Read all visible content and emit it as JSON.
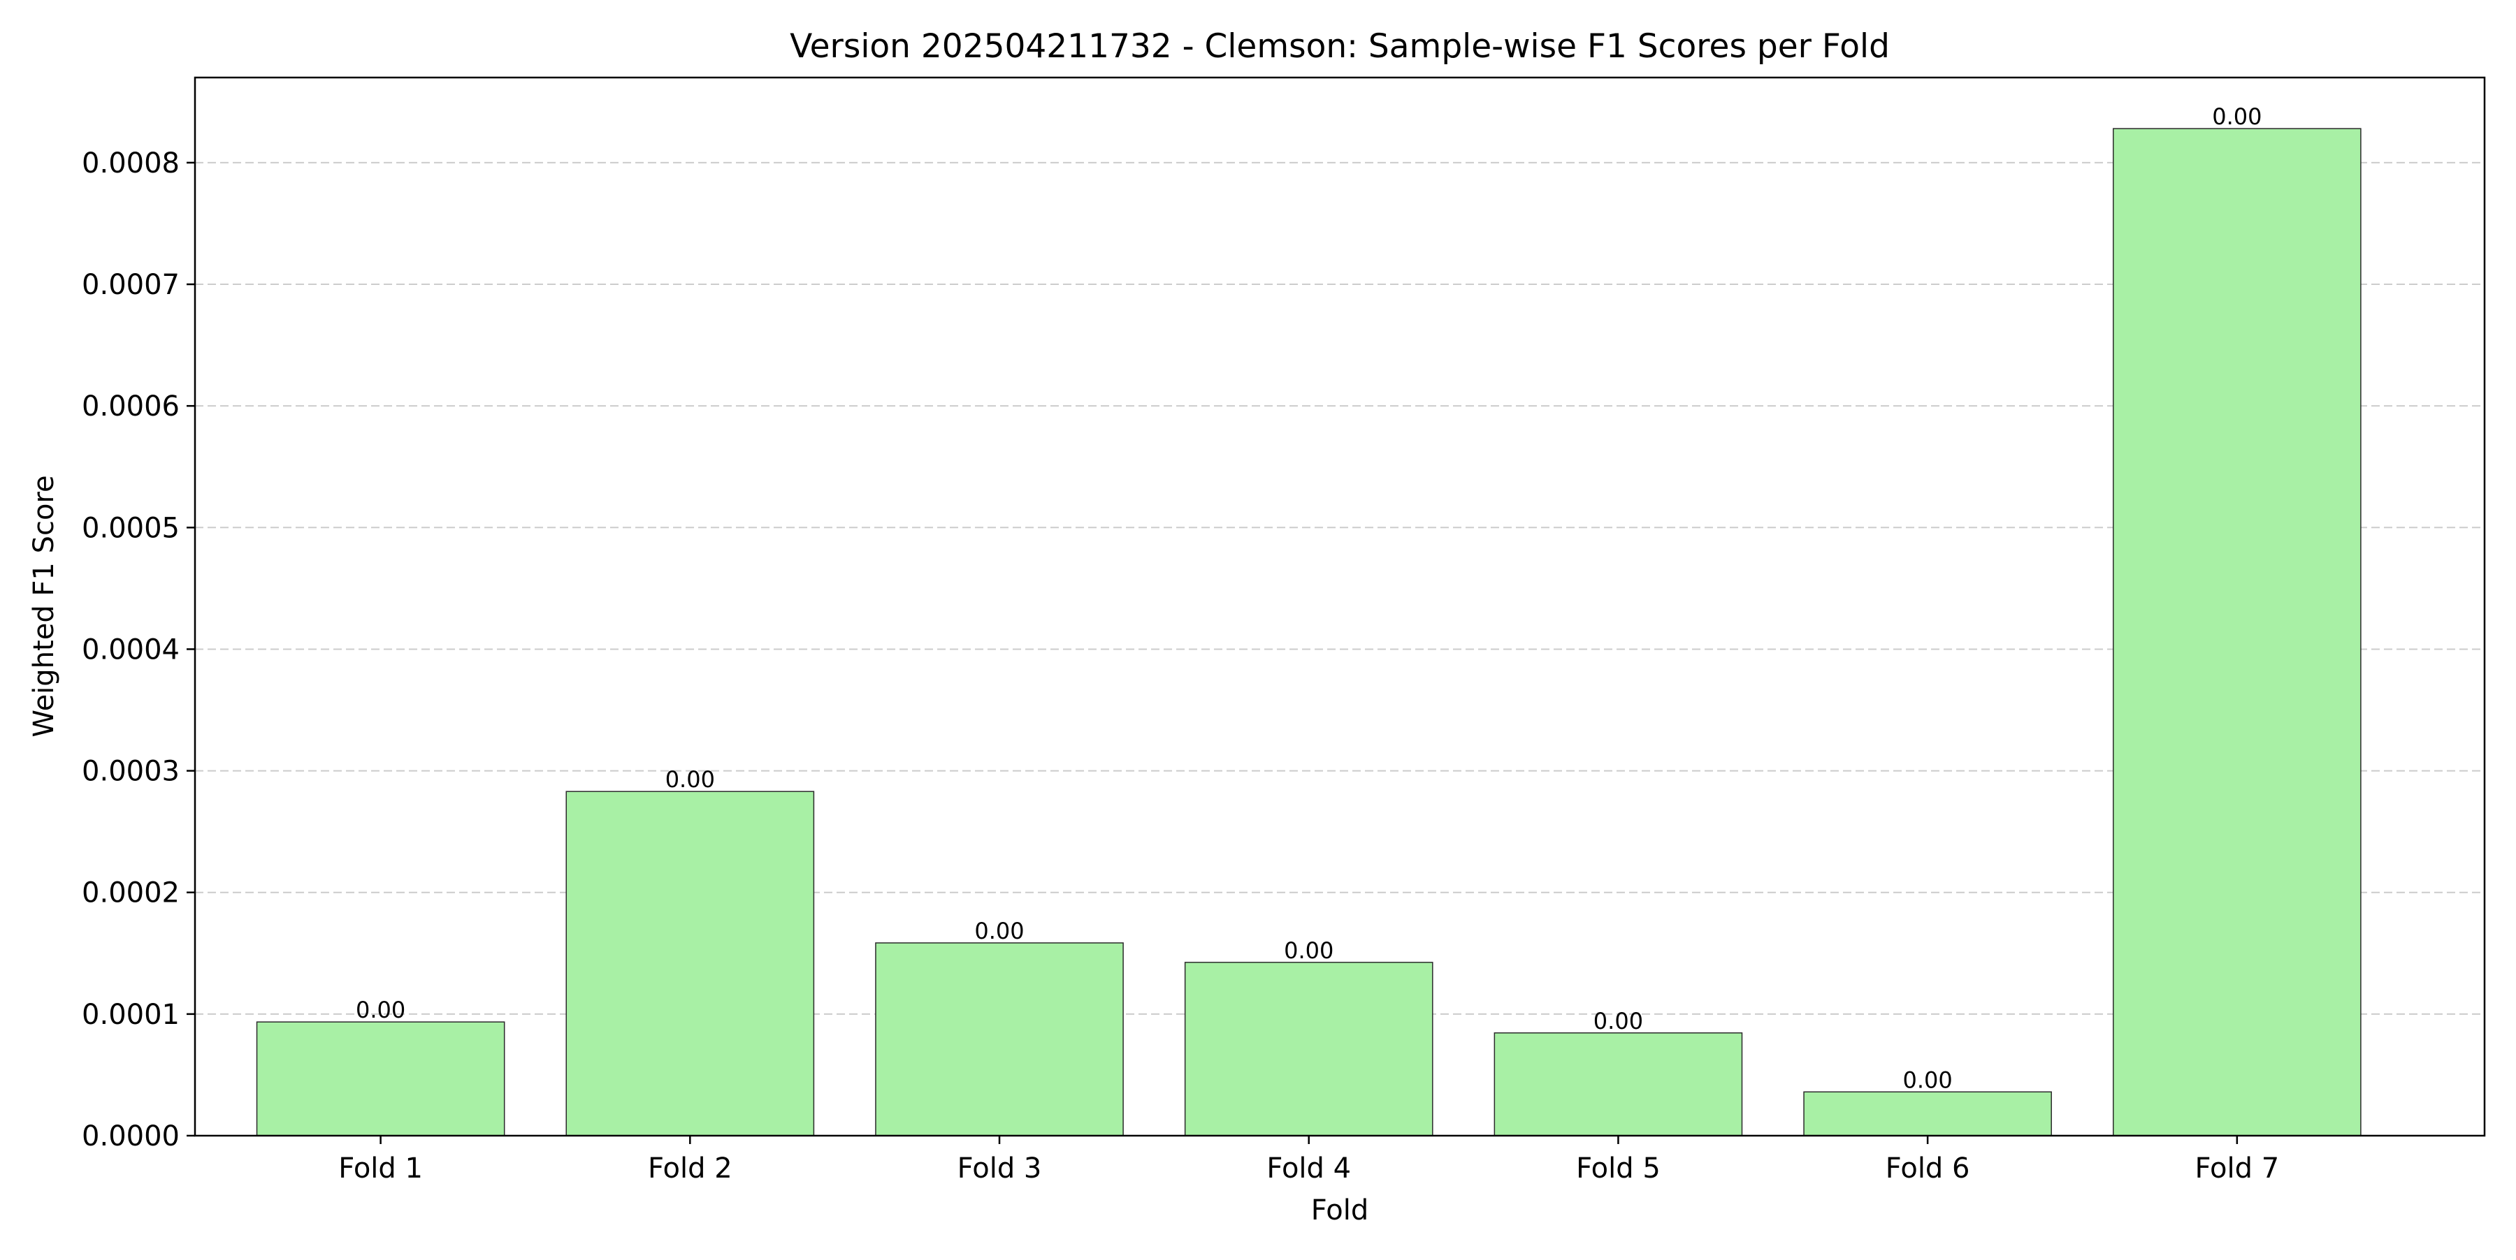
{
  "chart_data": {
    "type": "bar",
    "title": "Version 202504211732 - Clemson: Sample-wise F1 Scores per Fold",
    "xlabel": "Fold",
    "ylabel": "Weighted F1 Score",
    "categories": [
      "Fold 1",
      "Fold 2",
      "Fold 3",
      "Fold 4",
      "Fold 5",
      "Fold 6",
      "Fold 7"
    ],
    "values": [
      9.35e-05,
      0.000283,
      0.0001585,
      0.0001425,
      8.45e-05,
      3.6e-05,
      0.000828
    ],
    "value_labels": [
      "0.00",
      "0.00",
      "0.00",
      "0.00",
      "0.00",
      "0.00",
      "0.00"
    ],
    "ylim": [
      0,
      0.00087
    ],
    "yticks": [
      0,
      0.0001,
      0.0002,
      0.0003,
      0.0004,
      0.0005,
      0.0006,
      0.0007,
      0.0008
    ],
    "ytick_labels": [
      "0.0000",
      "0.0001",
      "0.0002",
      "0.0003",
      "0.0004",
      "0.0005",
      "0.0006",
      "0.0007",
      "0.0008"
    ],
    "grid": "y-dashed",
    "legend": "none",
    "colors": {
      "bar_fill": "#a8f0a5",
      "bar_edge": "#2b2b2b",
      "grid": "#cccccc"
    }
  }
}
